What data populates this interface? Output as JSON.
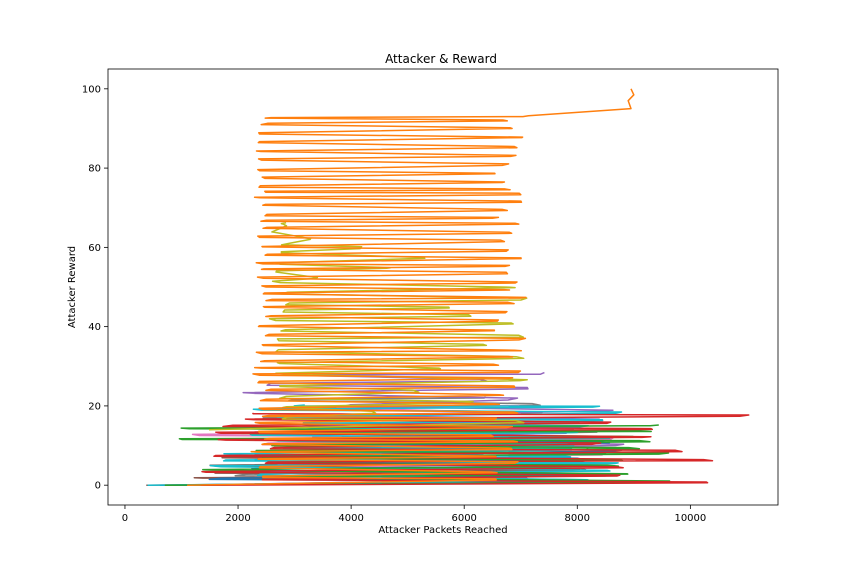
{
  "chart_data": {
    "type": "line",
    "title": "Attacker & Reward",
    "xlabel": "Attacker Packets Reached",
    "ylabel": "Attacker Reward",
    "xlim": [
      -300,
      11550
    ],
    "ylim": [
      -5,
      105
    ],
    "xticks": [
      0,
      2000,
      4000,
      6000,
      8000,
      10000
    ],
    "yticks": [
      0,
      20,
      40,
      60,
      80,
      100
    ],
    "grid": false,
    "colors": [
      "#1f77b4",
      "#ff7f0e",
      "#2ca02c",
      "#d62728",
      "#9467bd",
      "#8c564b",
      "#e377c2",
      "#7f7f7f",
      "#bcbd22",
      "#17becf"
    ],
    "series": [
      {
        "color": "#ff7f0e",
        "kind": "zigzag",
        "y_from": 0,
        "y_to": 93,
        "step": 1,
        "left": [
          2350,
          2500
        ],
        "right": [
          6500,
          7100
        ],
        "jitter": 120,
        "tail": [
          [
            8950,
            95
          ],
          [
            8900,
            97
          ],
          [
            9000,
            98.5
          ],
          [
            8950,
            100
          ]
        ]
      },
      {
        "color": "#bcbd22",
        "kind": "zigzag",
        "y_from": 14,
        "y_to": 66,
        "step": 1.3,
        "left": [
          2650,
          2850
        ],
        "right": [
          2800,
          7400
        ],
        "jitter": 150
      },
      {
        "color": "#d62728",
        "kind": "zigzag",
        "y_from": 0,
        "y_to": 18,
        "step": 0.9,
        "left": [
          1400,
          2700
        ],
        "right": [
          8200,
          10900
        ],
        "jitter": 200
      },
      {
        "color": "#2ca02c",
        "kind": "zigzag",
        "y_from": 0,
        "y_to": 15,
        "step": 0.8,
        "left": [
          1000,
          3000
        ],
        "right": [
          8500,
          9850
        ],
        "jitter": 200
      },
      {
        "color": "#17becf",
        "kind": "zigzag",
        "y_from": 0,
        "y_to": 20,
        "step": 0.9,
        "left": [
          1600,
          3300
        ],
        "right": [
          7800,
          8800
        ],
        "jitter": 200
      },
      {
        "color": "#1f77b4",
        "kind": "zigzag",
        "y_from": 0,
        "y_to": 12,
        "step": 0.9,
        "left": [
          1400,
          3500
        ],
        "right": [
          8100,
          8800
        ],
        "jitter": 200
      },
      {
        "color": "#9467bd",
        "kind": "zigzag",
        "y_from": 0,
        "y_to": 28,
        "step": 1.4,
        "left": [
          1700,
          4200
        ],
        "right": [
          6300,
          8700
        ],
        "jitter": 250
      },
      {
        "color": "#8c564b",
        "kind": "zigzag",
        "y_from": 0,
        "y_to": 9,
        "step": 0.8,
        "left": [
          1200,
          3000
        ],
        "right": [
          7800,
          8700
        ],
        "jitter": 200
      },
      {
        "color": "#e377c2",
        "kind": "zigzag",
        "y_from": 0,
        "y_to": 20,
        "step": 1.1,
        "left": [
          1300,
          4800
        ],
        "right": [
          6200,
          8600
        ],
        "jitter": 250
      },
      {
        "color": "#7f7f7f",
        "kind": "zigzag",
        "y_from": 0,
        "y_to": 22,
        "step": 1.2,
        "left": [
          1500,
          4100
        ],
        "right": [
          6300,
          8800
        ],
        "jitter": 250
      }
    ]
  }
}
